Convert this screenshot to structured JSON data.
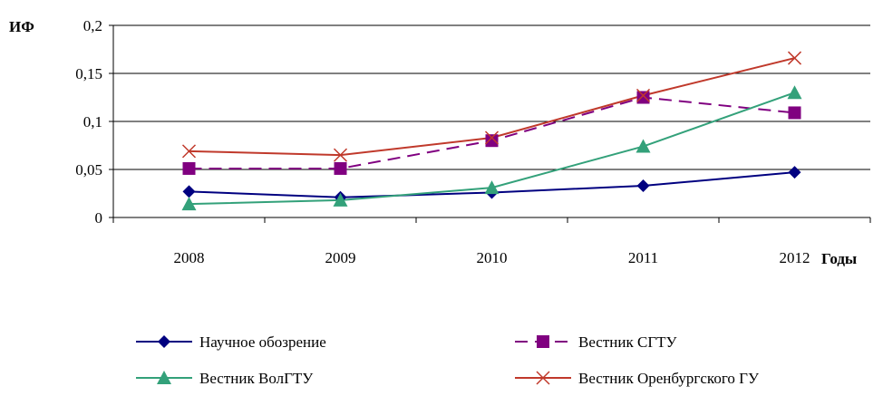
{
  "chart_data": {
    "type": "line",
    "ylabel": "ИФ",
    "xlabel": "Годы",
    "categories": [
      "2008",
      "2009",
      "2010",
      "2011",
      "2012"
    ],
    "ylim": [
      0,
      0.2
    ],
    "yticks": [
      {
        "value": 0,
        "label": "0"
      },
      {
        "value": 0.05,
        "label": "0,05"
      },
      {
        "value": 0.1,
        "label": "0,1"
      },
      {
        "value": 0.15,
        "label": "0,15"
      },
      {
        "value": 0.2,
        "label": "0,2"
      }
    ],
    "grid": true,
    "legend_position": "bottom",
    "series": [
      {
        "name": "Научное обозрение",
        "values": [
          0.027,
          0.021,
          0.026,
          0.033,
          0.047
        ],
        "color": "#000080",
        "marker": "diamond",
        "dash": false
      },
      {
        "name": "Вестник СГТУ",
        "values": [
          0.051,
          0.051,
          0.08,
          0.125,
          0.109
        ],
        "color": "#800080",
        "marker": "square",
        "dash": true
      },
      {
        "name": "Вестник ВолГТУ",
        "values": [
          0.014,
          0.018,
          0.031,
          0.074,
          0.13
        ],
        "color": "#33a17a",
        "marker": "triangle",
        "dash": false
      },
      {
        "name": "Вестник Оренбургского ГУ",
        "values": [
          0.069,
          0.065,
          0.083,
          0.127,
          0.166
        ],
        "color": "#c0392b",
        "marker": "x",
        "dash": false
      }
    ]
  }
}
